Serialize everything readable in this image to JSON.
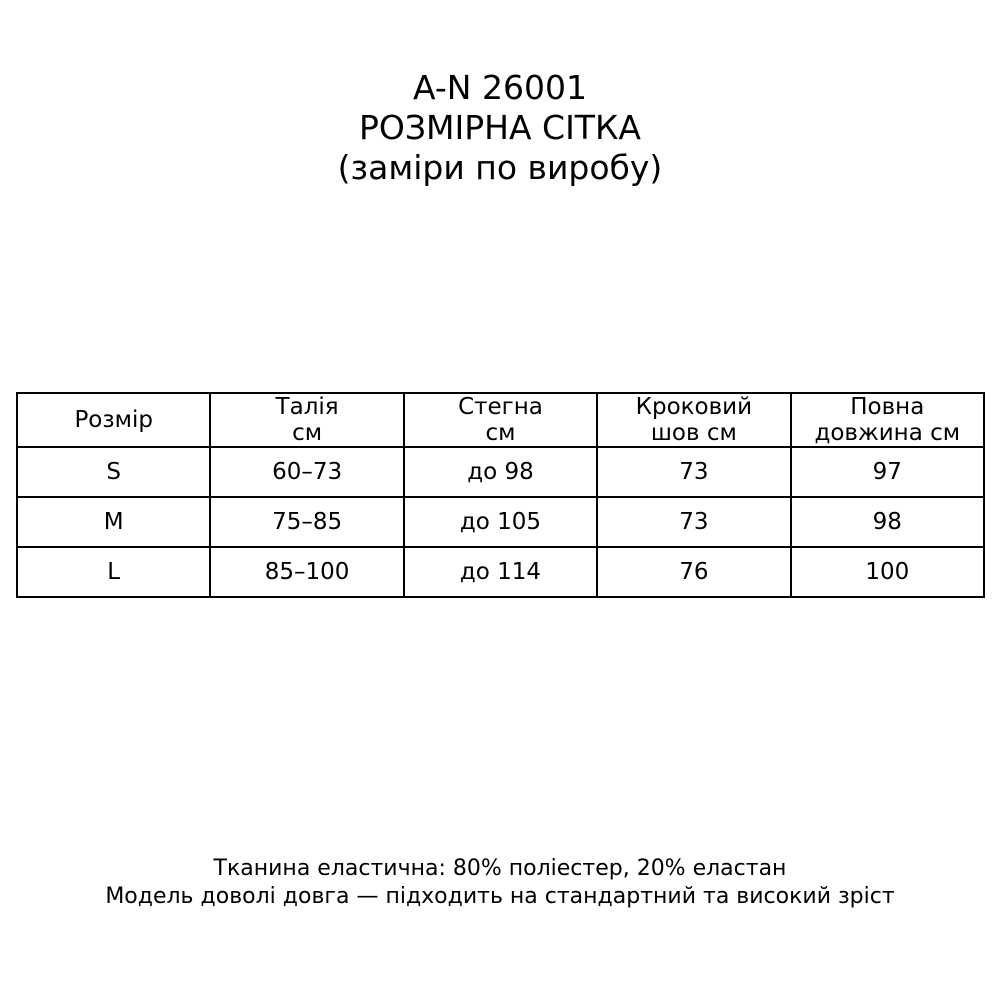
{
  "title": {
    "line1": "A-N 26001",
    "line2": "РОЗМІРНА СІТКА",
    "line3": "(заміри по виробу)"
  },
  "table": {
    "headers": [
      {
        "line1": "Розмір",
        "line2": ""
      },
      {
        "line1": "Талія",
        "line2": "см"
      },
      {
        "line1": "Стегна",
        "line2": "см"
      },
      {
        "line1": "Кроковий",
        "line2": "шов см"
      },
      {
        "line1": "Повна",
        "line2": "довжина см"
      }
    ],
    "rows": [
      [
        "S",
        "60–73",
        "до 98",
        "73",
        "97"
      ],
      [
        "M",
        "75–85",
        "до 105",
        "73",
        "98"
      ],
      [
        "L",
        "85–100",
        "до 114",
        "76",
        "100"
      ]
    ]
  },
  "footer": {
    "line1": "Тканина еластична: 80% поліестер, 20% еластан",
    "line2": "Модель доволі довга — підходить на стандартний та високий зріст"
  }
}
